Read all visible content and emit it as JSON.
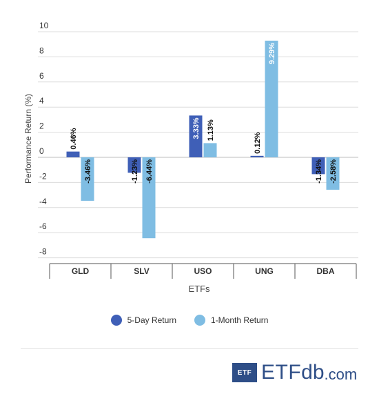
{
  "chart_data": {
    "type": "bar",
    "title": "",
    "xlabel": "ETFs",
    "ylabel": "Performance Return (%)",
    "ylim": [
      -8,
      10
    ],
    "yticks": [
      "10",
      "8",
      "6",
      "4",
      "2",
      "0",
      "-2",
      "-4",
      "-6",
      "-8"
    ],
    "ytick_values": [
      10,
      8,
      6,
      4,
      2,
      0,
      -2,
      -4,
      -6,
      -8
    ],
    "grid": true,
    "legend_position": "bottom",
    "categories": [
      "GLD",
      "SLV",
      "USO",
      "UNG",
      "DBA"
    ],
    "series": [
      {
        "name": "5-Day Return",
        "color": "#3f5fb7",
        "values": [
          0.46,
          -1.23,
          3.33,
          0.12,
          -1.34
        ],
        "labels": [
          "0.46%",
          "-1.23%",
          "3.33%",
          "0.12%",
          "-1.34%"
        ]
      },
      {
        "name": "1-Month Return",
        "color": "#7fbde3",
        "values": [
          -3.46,
          -6.44,
          1.13,
          9.29,
          -2.58
        ],
        "labels": [
          "-3.46%",
          "-6.44%",
          "1.13%",
          "9.29%",
          "-2.58%"
        ]
      }
    ]
  },
  "logo": {
    "box": "ETF",
    "name": "ETF",
    "db": "db",
    "com": ".com"
  }
}
